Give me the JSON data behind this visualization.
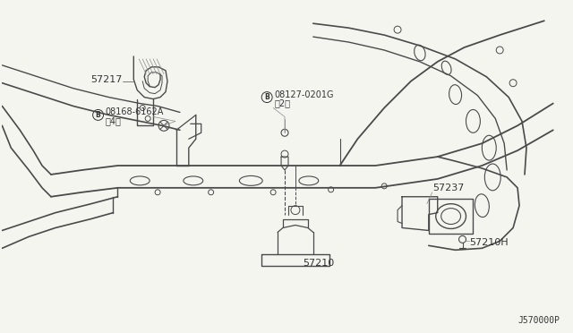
{
  "bg_color": "#f5f5f0",
  "line_color": "#4a4a4a",
  "text_color": "#333333",
  "diagram_code": "J570000P",
  "label_57217": "57217",
  "label_08168": "B)08168-6162A\n〈4）",
  "label_08127": "B)08127-0201G\n（2）",
  "label_57237": "57237",
  "label_57210": "57210",
  "label_57210H": "57210H"
}
